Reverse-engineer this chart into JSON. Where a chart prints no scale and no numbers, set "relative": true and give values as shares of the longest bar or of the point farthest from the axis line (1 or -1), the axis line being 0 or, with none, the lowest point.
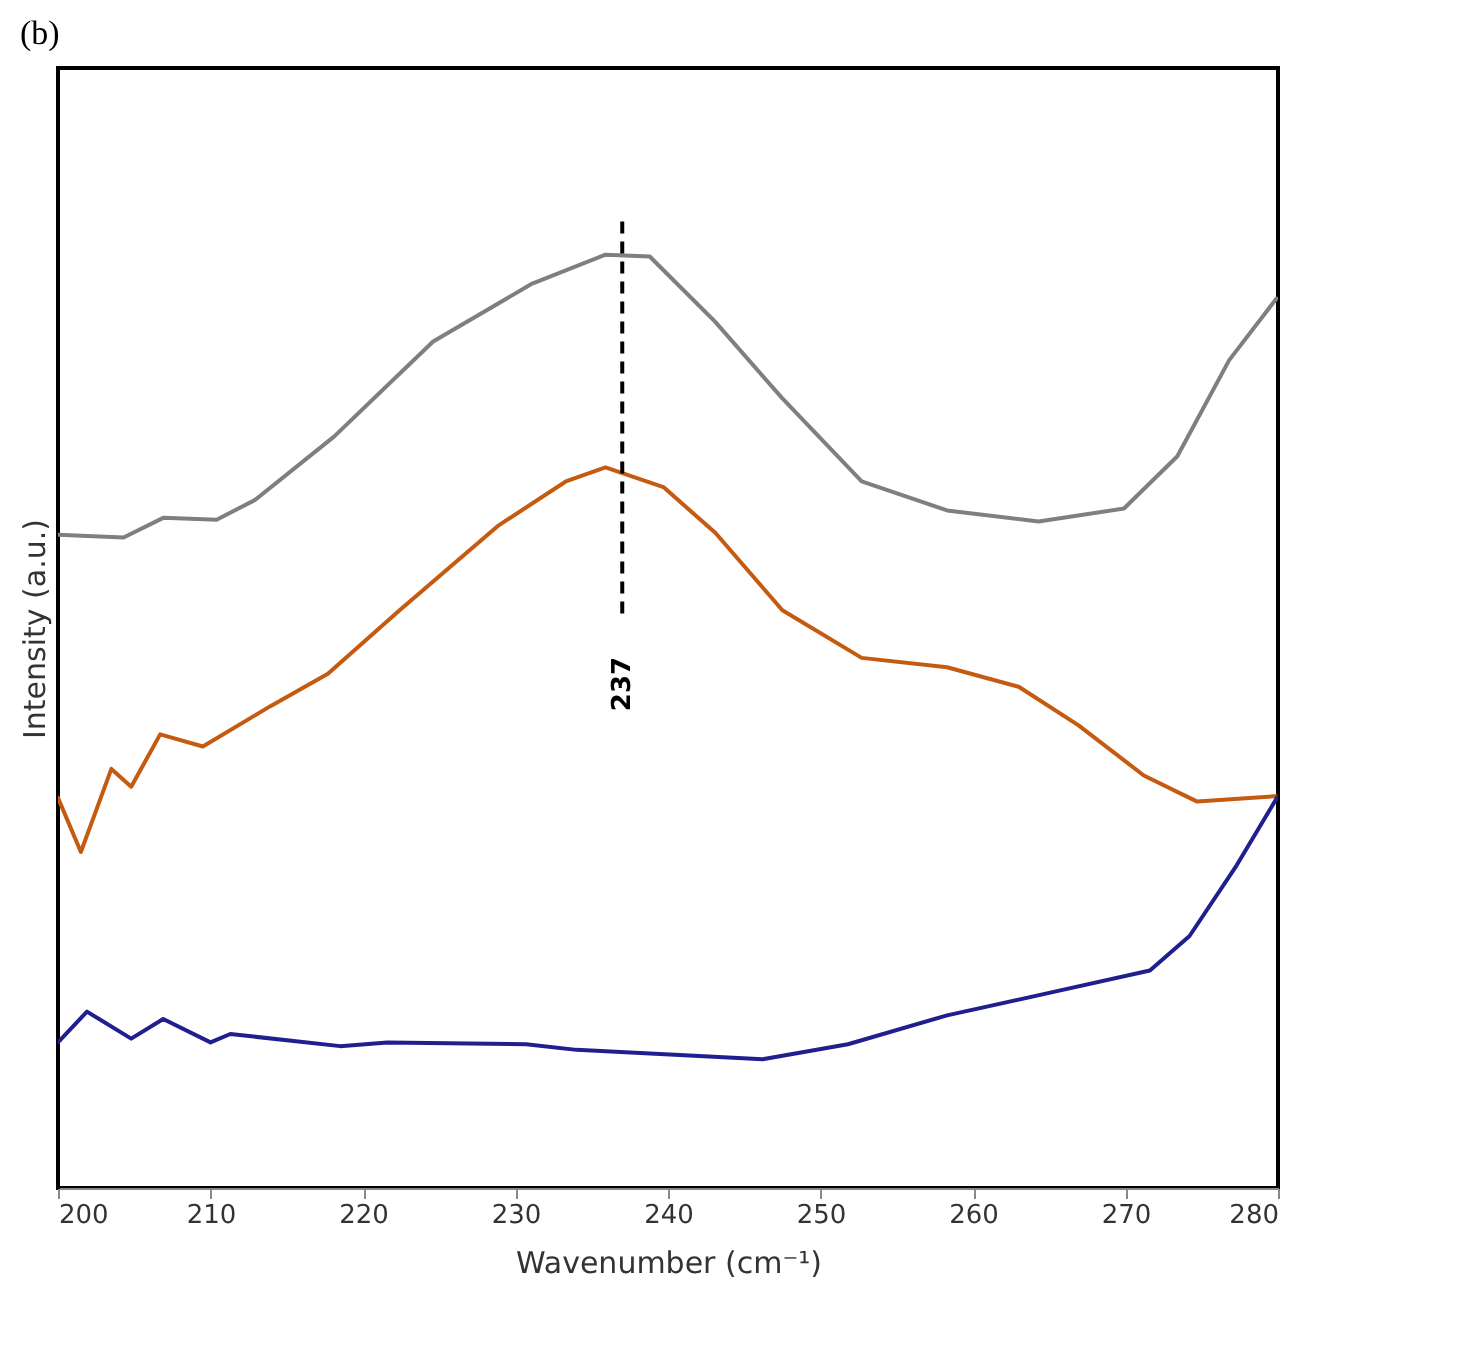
{
  "chart_data": {
    "type": "line",
    "title": "(b)",
    "xlabel": "Wavenumber (cm⁻¹)",
    "ylabel": "Intensity (a.u.)",
    "relative": true,
    "xlim": [
      200,
      280
    ],
    "xticks": [
      200,
      210,
      220,
      230,
      240,
      250,
      260,
      270,
      280
    ],
    "marker": "none",
    "line_style": "solid",
    "series": [
      {
        "color": "#7f7f7f",
        "x": [
          200,
          204.3,
          206.9,
          210.4,
          212.9,
          218.1,
          224.6,
          231.1,
          235.9,
          238.8,
          243.1,
          247.5,
          252.7,
          258.3,
          264.3,
          269.9,
          273.4,
          276.8,
          279.9
        ],
        "values": [
          0.7,
          0.697,
          0.718,
          0.716,
          0.737,
          0.805,
          0.907,
          0.969,
          1.0,
          0.998,
          0.928,
          0.846,
          0.757,
          0.726,
          0.714,
          0.728,
          0.784,
          0.887,
          0.953
        ]
      },
      {
        "color": "#c55a11",
        "x": [
          200,
          201.5,
          203.5,
          204.8,
          206.7,
          209.5,
          213.9,
          217.7,
          222.4,
          228.9,
          233.3,
          235.9,
          239.7,
          243.1,
          247.5,
          252.7,
          258.3,
          263.0,
          266.9,
          271.2,
          274.7,
          280
        ],
        "values": [
          0.418,
          0.36,
          0.449,
          0.43,
          0.486,
          0.473,
          0.516,
          0.551,
          0.619,
          0.71,
          0.757,
          0.772,
          0.751,
          0.702,
          0.619,
          0.568,
          0.558,
          0.537,
          0.496,
          0.442,
          0.414,
          0.42
        ]
      },
      {
        "color": "#1f1f8f",
        "x": [
          200,
          201.9,
          204.8,
          206.9,
          210.0,
          211.3,
          218.5,
          221.6,
          230.7,
          234.0,
          241.4,
          246.2,
          251.8,
          258.3,
          264.7,
          271.6,
          274.2,
          277.3,
          280
        ],
        "values": [
          0.156,
          0.189,
          0.16,
          0.181,
          0.156,
          0.165,
          0.152,
          0.156,
          0.154,
          0.148,
          0.142,
          0.138,
          0.154,
          0.185,
          0.208,
          0.233,
          0.27,
          0.346,
          0.42
        ]
      }
    ],
    "ref_lines": [
      {
        "axis": "x",
        "value": 237,
        "label": "237",
        "line_style": "dashed",
        "color": "#000000"
      }
    ]
  }
}
